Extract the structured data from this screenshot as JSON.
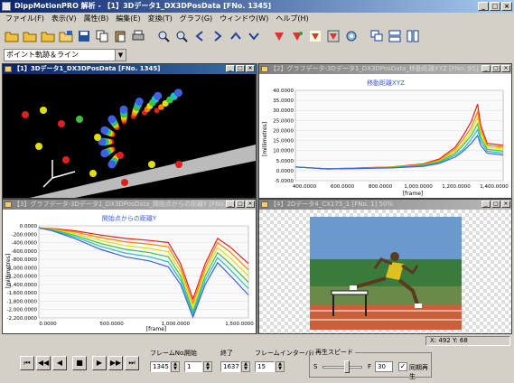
{
  "window": {
    "title": "DippMotionPRO 解析 - 【1】3Dデータ1_DX3DPosData [FNo. 1345]",
    "min": "_",
    "max": "□",
    "close": "×"
  },
  "menu": [
    "ファイル(F)",
    "表示(V)",
    "属性(B)",
    "編集(E)",
    "変換(T)",
    "グラフ(G)",
    "ウィンドウ(W)",
    "ヘルプ(H)"
  ],
  "toolbar": {
    "icons": [
      "open-folder-icon",
      "open-folder-icon",
      "open-folder-icon",
      "folder-icon",
      "save-icon",
      "copy-icon",
      "paste-icon",
      "print-icon",
      "zoom-in-icon",
      "zoom-out-icon",
      "arrow-left-icon",
      "arrow-right-icon",
      "arrow-up-icon",
      "arrow-down-icon",
      "marker-icon",
      "marker-icon",
      "marker-icon",
      "marker-icon",
      "target-icon",
      "window-cascade-icon",
      "window-tile-h-icon",
      "window-tile-v-icon"
    ]
  },
  "view_select": {
    "value": "ポイント軌跡＆ライン",
    "arrow": "▼"
  },
  "panels": {
    "p1": {
      "title": "【1】3Dデータ1_DX3DPosData [FNo. 1345]"
    },
    "p2": {
      "title": "【2】グラフデータ-3Dデータ1_DX3DPosData_移動距離XYZ [FNo. 95]",
      "chart_title": "移動距離XYZ",
      "ylabel": "[millimetres]",
      "xlabel": "[frame]"
    },
    "p3": {
      "title": "【3】グラフデータ-3Dデータ1_DX3DPosData_開始点からの距離Y [FNo. 95]",
      "chart_title": "開始点からの距離Y",
      "ylabel": "[millimetres]",
      "xlabel": "[frame]"
    },
    "p4": {
      "title": "【4】2Dデータ4_CX175_1 [FNo. 1] 50%"
    }
  },
  "chart_data": [
    {
      "type": "line",
      "title": "移動距離XYZ",
      "xlabel": "[frame]",
      "ylabel": "[millimetres]",
      "xlim": [
        200,
        1500
      ],
      "ylim": [
        -6,
        40
      ],
      "x_ticks": [
        "400.0000",
        "600.0000",
        "800.0000",
        "1,000.0000",
        "1,200.0000",
        "1,400.0000"
      ],
      "y_ticks": [
        "40.0000",
        "35.0000",
        "30.0000",
        "25.0000",
        "20.0000",
        "15.0000",
        "10.0000",
        "5.0000",
        "0.0000",
        "-5.0000"
      ],
      "x": [
        200,
        400,
        600,
        800,
        1000,
        1100,
        1200,
        1250,
        1300,
        1340,
        1360,
        1400,
        1500
      ],
      "series": [
        {
          "color": "#e02020",
          "values": [
            1,
            0,
            0.5,
            1,
            2.5,
            5,
            11,
            17,
            24,
            33,
            22,
            13,
            12
          ]
        },
        {
          "color": "#ff8000",
          "values": [
            1,
            0,
            0.4,
            1,
            2.2,
            4.5,
            10,
            15,
            21,
            29,
            20,
            12,
            11
          ]
        },
        {
          "color": "#e0e000",
          "values": [
            1,
            0,
            0.3,
            0.8,
            2,
            4,
            9,
            13,
            19,
            26,
            18,
            11,
            10
          ]
        },
        {
          "color": "#40c040",
          "values": [
            1,
            0,
            0.3,
            0.7,
            1.8,
            3.6,
            8,
            12,
            17,
            23,
            16,
            10,
            9
          ]
        },
        {
          "color": "#20c0c0",
          "values": [
            1,
            0,
            0.2,
            0.6,
            1.5,
            3.2,
            7,
            10,
            15,
            20,
            14,
            9,
            8
          ]
        },
        {
          "color": "#4060e0",
          "values": [
            1,
            0,
            0.2,
            0.5,
            1.3,
            2.8,
            6,
            9,
            13,
            17,
            12,
            8,
            7
          ]
        }
      ]
    },
    {
      "type": "line",
      "title": "開始点からの距離Y",
      "xlabel": "[frame]",
      "ylabel": "[millimetres]",
      "xlim": [
        0,
        1700
      ],
      "ylim": [
        -2200,
        0
      ],
      "x_ticks": [
        "0.0000",
        "500.0000",
        "1,000.0000",
        "1,500.0000"
      ],
      "y_ticks": [
        "0.0000",
        "-200.0000",
        "-400.0000",
        "-600.0000",
        "-800.0000",
        "-1,000.0000",
        "-1,200.0000",
        "-1,400.0000",
        "-1,600.0000",
        "-1,800.0000",
        "-2,000.0000",
        "-2,200.0000"
      ],
      "x": [
        0,
        100,
        300,
        500,
        700,
        900,
        1050,
        1150,
        1250,
        1350,
        1450,
        1550,
        1700
      ],
      "series": [
        {
          "color": "#e02020",
          "values": [
            -50,
            -60,
            -120,
            -220,
            -300,
            -350,
            -400,
            -900,
            -1750,
            -900,
            -300,
            -500,
            -900
          ]
        },
        {
          "color": "#ff8000",
          "values": [
            -50,
            -70,
            -150,
            -280,
            -380,
            -440,
            -500,
            -1000,
            -1850,
            -1000,
            -400,
            -620,
            -1050
          ]
        },
        {
          "color": "#e0e000",
          "values": [
            -50,
            -80,
            -190,
            -350,
            -470,
            -540,
            -620,
            -1100,
            -1950,
            -1100,
            -520,
            -760,
            -1200
          ]
        },
        {
          "color": "#40c040",
          "values": [
            -50,
            -90,
            -230,
            -420,
            -560,
            -640,
            -740,
            -1200,
            -2050,
            -1200,
            -640,
            -900,
            -1350
          ]
        },
        {
          "color": "#20c0c0",
          "values": [
            -50,
            -100,
            -270,
            -490,
            -650,
            -740,
            -860,
            -1300,
            -2120,
            -1300,
            -760,
            -1040,
            -1500
          ]
        },
        {
          "color": "#4060e0",
          "values": [
            -50,
            -110,
            -310,
            -560,
            -740,
            -840,
            -980,
            -1400,
            -2180,
            -1400,
            -880,
            -1180,
            -1650
          ]
        }
      ]
    }
  ],
  "status": {
    "coord": "X: 492  Y: 68"
  },
  "controls": {
    "frame_label": "フレームNo.",
    "frame_value": "1345",
    "start_label": "開始",
    "start_value": "1",
    "end_label": "終了",
    "end_value": "1637",
    "interval_label": "フレームインターバル",
    "interval_value": "15",
    "speed_label": "再生スピード",
    "speed_s": "S",
    "speed_f": "F",
    "speed_value": "30",
    "sync_label": "同期再生",
    "sync_checked": "✓",
    "buttons": [
      "⏮",
      "◀◀",
      "◀",
      "■",
      "▶",
      "▶▶",
      "⏭"
    ]
  }
}
